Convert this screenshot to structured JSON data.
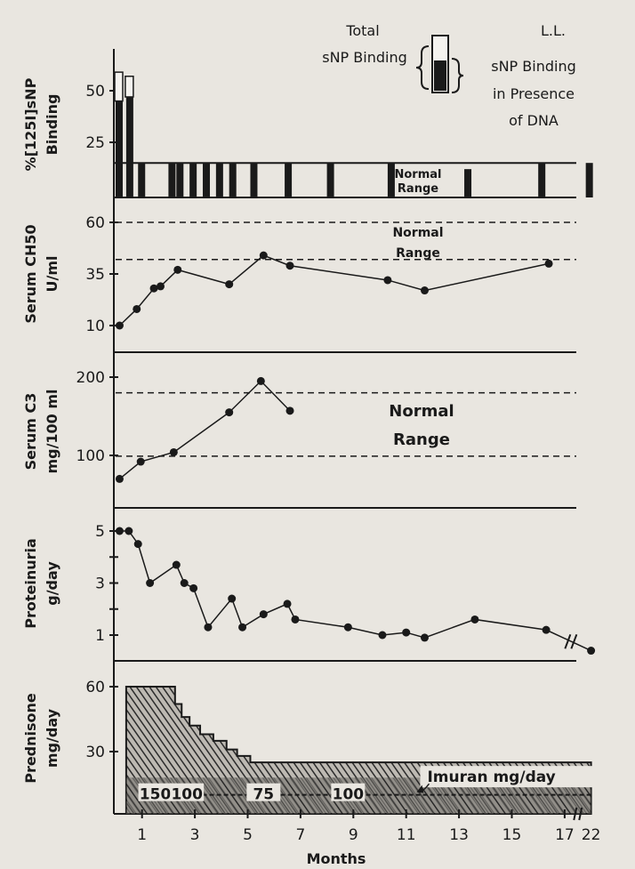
{
  "header": {
    "patient": "L.L.",
    "legend_total_line1": "Total",
    "legend_total_line2": "sNP Binding",
    "legend_dna_line1": "sNP Binding",
    "legend_dna_line2": "in Presence",
    "legend_dna_line3": "of DNA"
  },
  "colors": {
    "paper": "#e9e6e0",
    "ink": "#1a1a1a"
  },
  "chart_data": [
    {
      "type": "bar",
      "panel": "snp",
      "ylabel_line1": "%[125I]sNP",
      "ylabel_line2": "Binding",
      "yticks": [
        25,
        50
      ],
      "ylim": [
        0,
        62
      ],
      "normal_range_label_1": "Normal",
      "normal_range_label_2": "Range",
      "normal_range": [
        0,
        15
      ],
      "bars": [
        {
          "x": 0.0,
          "total": 59,
          "dna": 45
        },
        {
          "x": 0.4,
          "total": 57,
          "dna": 47
        },
        {
          "x": 0.85,
          "total": 15,
          "dna": 15
        },
        {
          "x": 2.0,
          "total": 15,
          "dna": 15
        },
        {
          "x": 2.3,
          "total": 15,
          "dna": 15
        },
        {
          "x": 2.8,
          "total": 15,
          "dna": 15
        },
        {
          "x": 3.3,
          "total": 15,
          "dna": 15
        },
        {
          "x": 3.8,
          "total": 15,
          "dna": 15
        },
        {
          "x": 4.3,
          "total": 15,
          "dna": 15
        },
        {
          "x": 5.1,
          "total": 15,
          "dna": 15
        },
        {
          "x": 6.4,
          "total": 15,
          "dna": 15
        },
        {
          "x": 8.0,
          "total": 15,
          "dna": 15
        },
        {
          "x": 10.3,
          "total": 15,
          "dna": 15
        },
        {
          "x": 13.2,
          "total": 12,
          "dna": 12
        },
        {
          "x": 16.0,
          "total": 15,
          "dna": 15
        },
        {
          "x": 17.8,
          "total": 15,
          "dna": 15
        }
      ]
    },
    {
      "type": "line",
      "panel": "ch50",
      "ylabel_line1": "Serum CH50",
      "ylabel_line2": "U/ml",
      "yticks": [
        10,
        35,
        60
      ],
      "normal_range": [
        42,
        60
      ],
      "normal_range_label_1": "Normal",
      "normal_range_label_2": "Range",
      "x": [
        0.15,
        0.8,
        1.45,
        1.7,
        2.35,
        4.3,
        5.6,
        6.6,
        10.3,
        11.7,
        16.4
      ],
      "y": [
        10,
        18,
        28,
        29,
        37,
        30,
        44,
        39,
        32,
        27,
        40
      ]
    },
    {
      "type": "line",
      "panel": "c3",
      "ylabel_line1": "Serum C3",
      "ylabel_line2": "mg/100 ml",
      "yticks": [
        100,
        200
      ],
      "normal_range": [
        99,
        180
      ],
      "normal_range_label_1": "Normal",
      "normal_range_label_2": "Range",
      "x": [
        0.15,
        0.95,
        2.2,
        4.3,
        5.5,
        6.6
      ],
      "y": [
        70,
        92,
        104,
        155,
        195,
        157
      ]
    },
    {
      "type": "line",
      "panel": "proteinuria",
      "ylabel_line1": "Proteinuria",
      "ylabel_line2": "g/day",
      "yticks": [
        1,
        3,
        5
      ],
      "x": [
        0.15,
        0.5,
        0.85,
        1.3,
        2.3,
        2.6,
        2.95,
        3.5,
        4.4,
        4.8,
        5.6,
        6.5,
        6.8,
        8.8,
        10.1,
        11.0,
        11.7,
        13.6,
        16.3,
        18.0
      ],
      "y": [
        5,
        5,
        4.5,
        3,
        3.7,
        3,
        2.8,
        1.3,
        2.4,
        1.3,
        1.8,
        2.2,
        1.6,
        1.3,
        1,
        1.1,
        0.9,
        1.6,
        1.2,
        0.4
      ]
    },
    {
      "type": "area",
      "panel": "prednisone",
      "ylabel_line1": "Prednisone",
      "ylabel_line2": "mg/day",
      "yticks": [
        30,
        60
      ],
      "prednisone_steps": [
        [
          0.4,
          60
        ],
        [
          2.25,
          52
        ],
        [
          2.5,
          46
        ],
        [
          2.8,
          42
        ],
        [
          3.2,
          38
        ],
        [
          3.7,
          35
        ],
        [
          4.2,
          31
        ],
        [
          4.6,
          28
        ],
        [
          5.1,
          25
        ],
        [
          18,
          25
        ]
      ],
      "imuran_label": "Imuran mg/day",
      "imuran_doses": [
        "150",
        "100",
        "75",
        "100"
      ],
      "imuran_dose_x": [
        1.5,
        2.7,
        5.6,
        8.8
      ]
    }
  ],
  "x_axis": {
    "xlabel": "Months",
    "tick_values": [
      1,
      3,
      5,
      7,
      9,
      11,
      13,
      15,
      17
    ],
    "tick_labels": [
      "1",
      "3",
      "5",
      "7",
      "9",
      "11",
      "13",
      "15",
      "17",
      "22"
    ],
    "break_label": "22",
    "xlim": [
      0,
      18
    ]
  }
}
